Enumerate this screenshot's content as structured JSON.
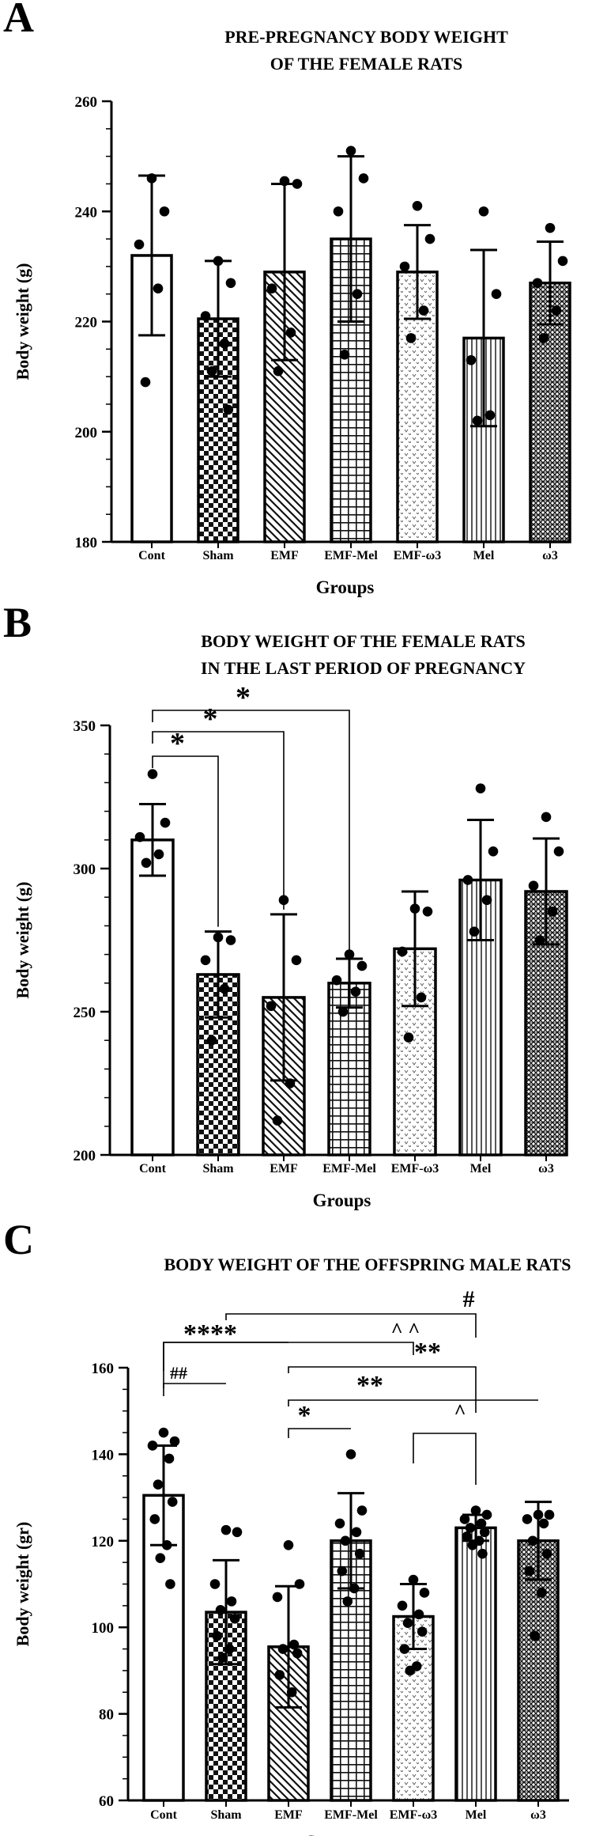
{
  "chart_data": [
    {
      "type": "bar",
      "panel": "A",
      "title": [
        "PRE-PREGNANCY BODY WEIGHT",
        "OF THE FEMALE RATS"
      ],
      "xlabel": "Groups",
      "ylabel": "Body weight (g)",
      "ylim": [
        180,
        260
      ],
      "yticks": [
        180,
        200,
        220,
        240,
        260
      ],
      "minor_step": 5,
      "categories": [
        "Cont",
        "Sham",
        "EMF",
        "EMF-Mel",
        "EMF-ω3",
        "Mel",
        "ω3"
      ],
      "values": [
        232,
        220.5,
        229,
        235,
        229,
        217,
        227
      ],
      "errors": [
        14.5,
        10.5,
        16,
        15,
        8.5,
        16,
        7.5
      ],
      "points": [
        [
          246,
          240,
          234,
          226,
          209
        ],
        [
          231,
          227,
          221,
          216,
          211,
          204
        ],
        [
          245.5,
          245,
          226,
          218,
          211
        ],
        [
          251,
          246,
          240,
          225,
          214
        ],
        [
          241,
          235,
          230,
          222,
          217
        ],
        [
          240,
          225,
          213,
          203,
          202
        ],
        [
          237,
          231,
          227,
          222,
          217
        ]
      ],
      "annotations": []
    },
    {
      "type": "bar",
      "panel": "B",
      "title": [
        "BODY WEIGHT OF THE FEMALE RATS",
        "IN THE LAST PERIOD OF PREGNANCY"
      ],
      "xlabel": "Groups",
      "ylabel": "Body weight (g)",
      "ylim": [
        200,
        350
      ],
      "yticks": [
        200,
        250,
        300,
        350
      ],
      "minor_step": 10,
      "categories": [
        "Cont",
        "Sham",
        "EMF",
        "EMF-Mel",
        "EMF-ω3",
        "Mel",
        "ω3"
      ],
      "values": [
        310,
        263,
        255,
        260,
        272,
        296,
        292
      ],
      "errors": [
        12.5,
        15,
        29,
        8.5,
        20,
        21,
        18.5
      ],
      "points": [
        [
          333,
          316,
          311,
          305,
          302
        ],
        [
          276,
          275,
          268,
          258,
          240
        ],
        [
          289,
          268,
          252,
          225,
          212
        ],
        [
          270,
          266,
          261,
          257,
          250
        ],
        [
          286,
          285,
          271,
          255,
          241
        ],
        [
          328,
          306,
          296,
          289,
          278
        ],
        [
          318,
          306,
          294,
          285,
          275
        ]
      ],
      "annotations": [
        {
          "from": 0,
          "to": 1,
          "label": "*"
        },
        {
          "from": 0,
          "to": 2,
          "label": "*"
        },
        {
          "from": 0,
          "to": 3,
          "label": "*"
        }
      ]
    },
    {
      "type": "bar",
      "panel": "C",
      "title": [
        "BODY WEIGHT OF THE OFFSPRING MALE RATS"
      ],
      "xlabel": "Groups",
      "ylabel": "Body weight (gr)",
      "ylim": [
        60,
        160
      ],
      "yticks": [
        60,
        80,
        100,
        120,
        140,
        160
      ],
      "minor_step": 5,
      "categories": [
        "Cont",
        "Sham",
        "EMF",
        "EMF-Mel",
        "EMF-ω3",
        "Mel",
        "ω3"
      ],
      "values": [
        130.5,
        103.5,
        95.5,
        120,
        102.5,
        123,
        120
      ],
      "errors": [
        11.5,
        12,
        14,
        11,
        7.5,
        3,
        9
      ],
      "points": [
        [
          145,
          143,
          142,
          139,
          133,
          129,
          125,
          119,
          116,
          110
        ],
        [
          122.5,
          122,
          110,
          106,
          104,
          102,
          98,
          95,
          93
        ],
        [
          119,
          110,
          107,
          96,
          95,
          94,
          89,
          85
        ],
        [
          140,
          127,
          124,
          122,
          120,
          117,
          113,
          109,
          106
        ],
        [
          111,
          108,
          105,
          103,
          101,
          99,
          95,
          91,
          90
        ],
        [
          127,
          126,
          125,
          124,
          123,
          122,
          121,
          120,
          119,
          117
        ],
        [
          126,
          126,
          125,
          124,
          120,
          117,
          113,
          108,
          98
        ]
      ],
      "annotations": [
        {
          "from": 1,
          "to": 5,
          "label": "#"
        },
        {
          "from": 0,
          "to": 4,
          "label": "^ ^"
        },
        {
          "from": 0,
          "to": 2,
          "label": "****"
        },
        {
          "from": 2,
          "to": 5,
          "label": "**"
        },
        {
          "from": 0,
          "to": 1,
          "label": "##"
        },
        {
          "from": 2,
          "to": 6,
          "label": "**"
        },
        {
          "from": 2,
          "to": 3,
          "label": "*"
        },
        {
          "from": 4,
          "to": 5,
          "label": "^"
        }
      ]
    }
  ]
}
